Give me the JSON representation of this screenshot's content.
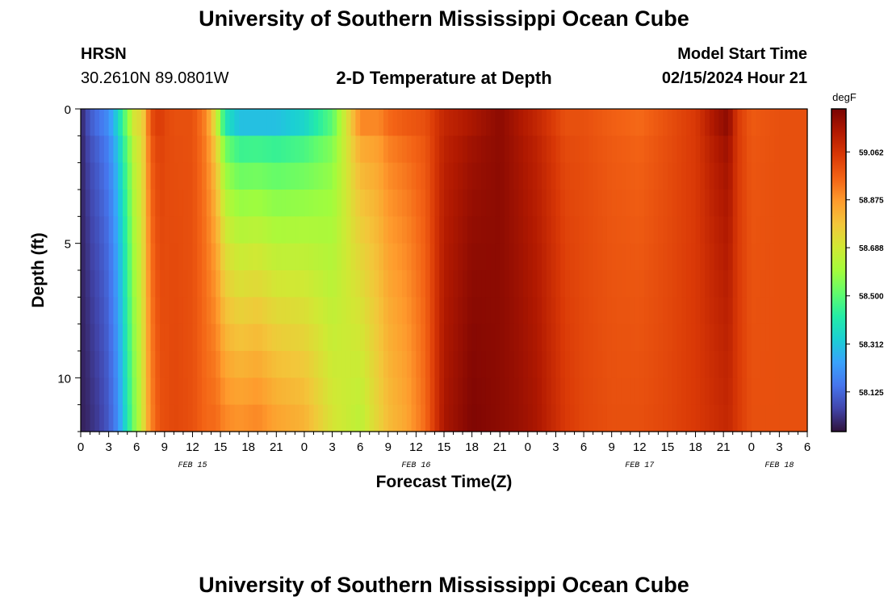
{
  "header": {
    "title": "University of Southern Mississippi Ocean Cube",
    "station_name": "HRSN",
    "station_coords": "30.2610N  89.0801W",
    "chart_title": "2-D Temperature at Depth",
    "model_start_label": "Model Start Time",
    "model_start_value": "02/15/2024 Hour 21"
  },
  "footer": {
    "title": "University of Southern Mississippi Ocean Cube"
  },
  "colors": {
    "stops": [
      "#30123b",
      "#4145ab",
      "#4675ed",
      "#39a2fc",
      "#1bcfd4",
      "#24eca6",
      "#61fc6c",
      "#a4fc3b",
      "#d1e834",
      "#f3c63a",
      "#fe9b2d",
      "#f36315",
      "#d93806",
      "#b11901",
      "#7a0403"
    ]
  },
  "chart_data": {
    "type": "heatmap",
    "title": "2-D Temperature at Depth",
    "xlabel": "Forecast Time(Z)",
    "ylabel": "Depth (ft)",
    "unit": "degF",
    "x_start_hour": 0,
    "x_end_hour": 78,
    "x_tick_labels": [
      "0",
      "3",
      "6",
      "9",
      "12",
      "15",
      "18",
      "21",
      "0",
      "3",
      "6",
      "9",
      "12",
      "15",
      "18",
      "21",
      "0",
      "3",
      "6",
      "9",
      "12",
      "15",
      "18",
      "21",
      "0",
      "3",
      "6"
    ],
    "date_labels": [
      {
        "label": "FEB 15",
        "hour": 12
      },
      {
        "label": "FEB 16",
        "hour": 36
      },
      {
        "label": "FEB 17",
        "hour": 60
      },
      {
        "label": "FEB 18",
        "hour": 75
      }
    ],
    "ylim": [
      0,
      12
    ],
    "y_tick_labels": [
      "0",
      "5",
      "10"
    ],
    "y_tick_values": [
      0,
      5,
      10
    ],
    "depth_levels": 12,
    "colorbar": {
      "min": 57.97,
      "max": 59.23,
      "ticks": [
        "58.125",
        "58.312",
        "58.500",
        "58.688",
        "58.875",
        "59.062"
      ],
      "tick_values": [
        58.125,
        58.312,
        58.5,
        58.688,
        58.875,
        59.062
      ]
    },
    "profile_hours": [
      0,
      0.5,
      1,
      2,
      3,
      4,
      5,
      6,
      6.5,
      7,
      7.5,
      8.5,
      9,
      10,
      12,
      13.5,
      14.5,
      15.5,
      17,
      19,
      21,
      24,
      27,
      30,
      32,
      33,
      35,
      37,
      39,
      42,
      45,
      47,
      49,
      50.5,
      52,
      54,
      57,
      60,
      63,
      66,
      68,
      69.5,
      70.5,
      72,
      75,
      78
    ],
    "surface_degF": [
      58.0,
      58.05,
      58.1,
      58.15,
      58.2,
      58.35,
      58.55,
      58.75,
      58.7,
      58.85,
      59.0,
      59.05,
      59.02,
      59.0,
      59.0,
      58.9,
      58.7,
      58.4,
      58.3,
      58.3,
      58.3,
      58.35,
      58.5,
      58.9,
      58.9,
      58.95,
      58.98,
      59.0,
      59.1,
      59.15,
      59.2,
      59.15,
      59.1,
      59.05,
      59.0,
      59.0,
      58.97,
      58.95,
      59.0,
      59.05,
      59.15,
      59.2,
      59.05,
      58.98,
      59.0,
      59.0
    ],
    "bottom_degF": [
      58.0,
      58.0,
      58.02,
      58.05,
      58.1,
      58.2,
      58.4,
      58.6,
      58.65,
      58.8,
      58.9,
      59.0,
      59.0,
      59.02,
      59.0,
      58.95,
      58.95,
      58.9,
      58.88,
      58.9,
      58.85,
      58.82,
      58.7,
      58.65,
      58.75,
      58.8,
      58.85,
      58.95,
      59.15,
      59.22,
      59.2,
      59.18,
      59.15,
      59.1,
      59.05,
      59.02,
      59.0,
      59.0,
      59.02,
      59.05,
      59.08,
      59.1,
      59.05,
      59.0,
      59.0,
      59.0
    ]
  }
}
